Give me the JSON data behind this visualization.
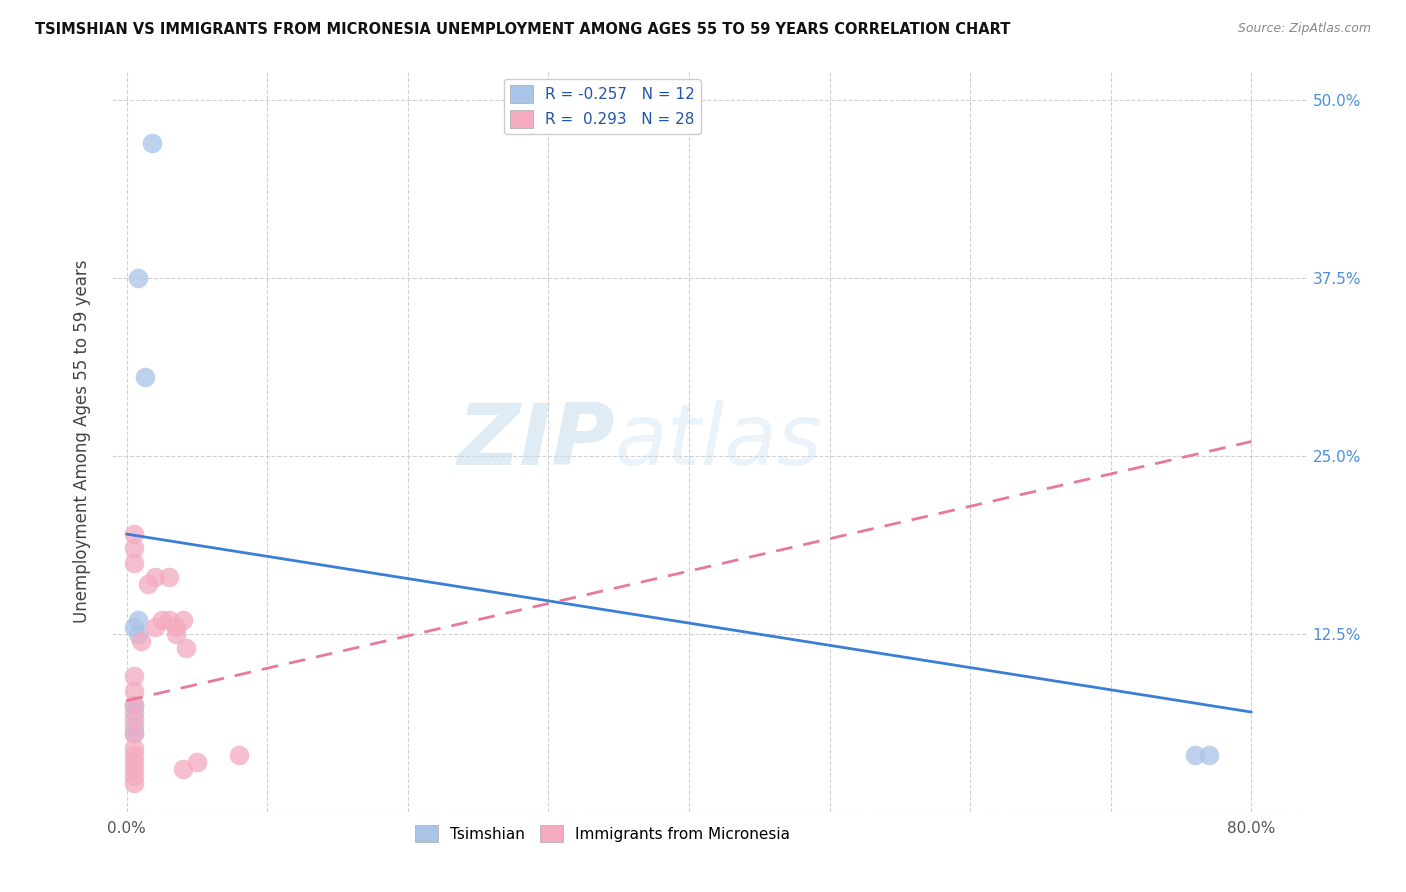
{
  "title": "TSIMSHIAN VS IMMIGRANTS FROM MICRONESIA UNEMPLOYMENT AMONG AGES 55 TO 59 YEARS CORRELATION CHART",
  "source": "Source: ZipAtlas.com",
  "ylabel": "Unemployment Among Ages 55 to 59 years",
  "ylim": [
    0,
    0.52
  ],
  "xlim": [
    -0.01,
    0.84
  ],
  "legend_label1": "R = -0.257   N = 12",
  "legend_label2": "R =  0.293   N = 28",
  "tsimshian_color": "#aac4e8",
  "micronesia_color": "#f4aabf",
  "tsimshian_line_color": "#3a7fd5",
  "micronesia_line_color": "#e8799a",
  "background_color": "#ffffff",
  "grid_color": "#cccccc",
  "watermark_zip": "ZIP",
  "watermark_atlas": "atlas",
  "tsimshian_x": [
    0.018,
    0.008,
    0.013,
    0.008,
    0.005,
    0.008,
    0.005,
    0.005,
    0.005,
    0.005,
    0.76,
    0.77
  ],
  "tsimshian_y": [
    0.47,
    0.375,
    0.305,
    0.135,
    0.13,
    0.125,
    0.075,
    0.07,
    0.06,
    0.055,
    0.04,
    0.04
  ],
  "micronesia_x": [
    0.005,
    0.005,
    0.005,
    0.005,
    0.005,
    0.005,
    0.005,
    0.005,
    0.005,
    0.005,
    0.005,
    0.005,
    0.005,
    0.005,
    0.01,
    0.015,
    0.02,
    0.02,
    0.025,
    0.03,
    0.03,
    0.035,
    0.035,
    0.04,
    0.04,
    0.042,
    0.05,
    0.08
  ],
  "micronesia_y": [
    0.195,
    0.185,
    0.175,
    0.095,
    0.085,
    0.075,
    0.065,
    0.055,
    0.045,
    0.04,
    0.035,
    0.03,
    0.025,
    0.02,
    0.12,
    0.16,
    0.165,
    0.13,
    0.135,
    0.165,
    0.135,
    0.13,
    0.125,
    0.135,
    0.03,
    0.115,
    0.035,
    0.04
  ],
  "tsimshian_r": -0.257,
  "tsimshian_n": 12,
  "micronesia_r": 0.293,
  "micronesia_n": 28,
  "blue_line_x0": 0.0,
  "blue_line_y0": 0.195,
  "blue_line_x1": 0.8,
  "blue_line_y1": 0.07,
  "pink_line_x0": 0.0,
  "pink_line_y0": 0.078,
  "pink_line_x1": 0.8,
  "pink_line_y1": 0.26
}
